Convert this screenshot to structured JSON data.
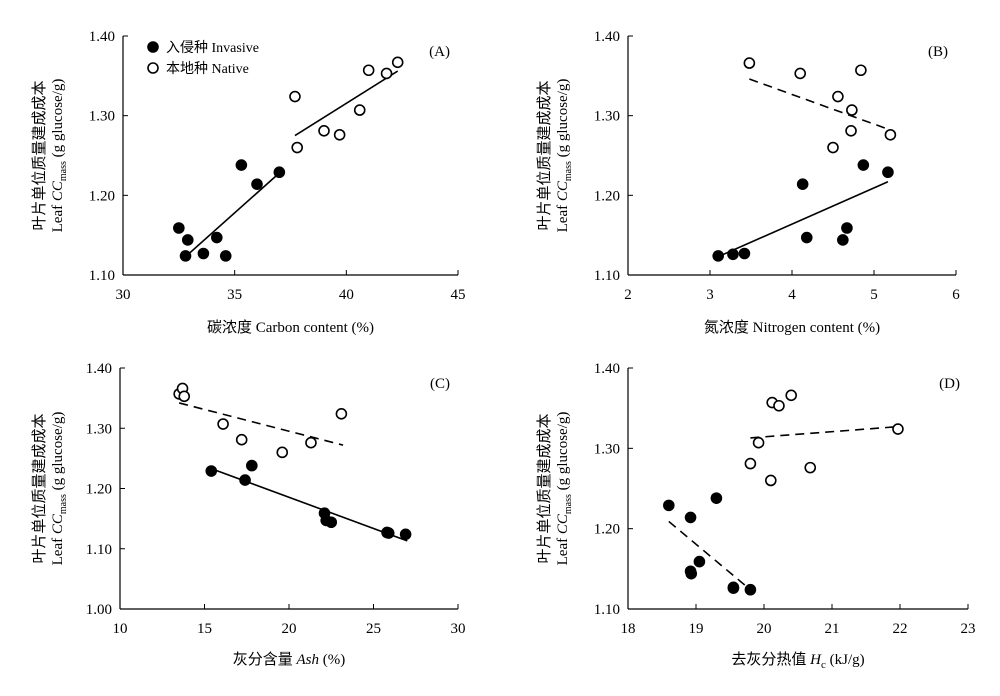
{
  "chart_data": [
    {
      "type": "scatter",
      "panel": "(A)",
      "xlabel_cn": "碳浓度",
      "xlabel_en": "Carbon content (%)",
      "ylabel_cn": "叶片单位质量建成成本",
      "ylabel_en_prefix": "Leaf ",
      "ylabel_italic": "CC",
      "ylabel_sub": "mass",
      "ylabel_en_suffix": " (g glucose/g)",
      "xlim": [
        30,
        45
      ],
      "ylim": [
        1.1,
        1.4
      ],
      "xticks": [
        30,
        35,
        40,
        45
      ],
      "xtick_labels": [
        "30",
        "35",
        "40",
        "45"
      ],
      "yticks": [
        1.1,
        1.2,
        1.3,
        1.4
      ],
      "ytick_labels": [
        "1.10",
        "1.20",
        "1.30",
        "1.40"
      ],
      "legend": {
        "position": "top-left",
        "entries": [
          {
            "series": "invasive",
            "label": "入侵种  Invasive"
          },
          {
            "series": "native",
            "label": "本地种  Native"
          }
        ]
      },
      "series": [
        {
          "key": "invasive",
          "name": "入侵种 Invasive",
          "filled": true,
          "points": [
            [
              32.5,
              1.159
            ],
            [
              32.8,
              1.124
            ],
            [
              32.9,
              1.144
            ],
            [
              33.6,
              1.127
            ],
            [
              34.2,
              1.147
            ],
            [
              34.6,
              1.124
            ],
            [
              35.3,
              1.238
            ],
            [
              36.0,
              1.214
            ],
            [
              37.0,
              1.229
            ]
          ],
          "trend": {
            "style": "solid",
            "x": [
              32.8,
              37.0
            ],
            "y": [
              1.123,
              1.228
            ]
          }
        },
        {
          "key": "native",
          "name": "本地种 Native",
          "filled": false,
          "points": [
            [
              37.7,
              1.324
            ],
            [
              37.8,
              1.26
            ],
            [
              39.0,
              1.281
            ],
            [
              39.7,
              1.276
            ],
            [
              40.6,
              1.307
            ],
            [
              41.0,
              1.357
            ],
            [
              41.8,
              1.353
            ],
            [
              42.3,
              1.367
            ]
          ],
          "trend": {
            "style": "solid",
            "x": [
              37.7,
              42.3
            ],
            "y": [
              1.275,
              1.356
            ]
          }
        }
      ]
    },
    {
      "type": "scatter",
      "panel": "(B)",
      "xlabel_cn": "氮浓度",
      "xlabel_en": "Nitrogen content (%)",
      "ylabel_cn": "叶片单位质量建成成本",
      "ylabel_en_prefix": "Leaf ",
      "ylabel_italic": "CC",
      "ylabel_sub": "mass",
      "ylabel_en_suffix": " (g glucose/g)",
      "xlim": [
        2,
        6
      ],
      "ylim": [
        1.1,
        1.4
      ],
      "xticks": [
        2,
        3,
        4,
        5,
        6
      ],
      "xtick_labels": [
        "2",
        "3",
        "4",
        "5",
        "6"
      ],
      "yticks": [
        1.1,
        1.2,
        1.3,
        1.4
      ],
      "ytick_labels": [
        "1.10",
        "1.20",
        "1.30",
        "1.40"
      ],
      "series": [
        {
          "key": "invasive",
          "filled": true,
          "points": [
            [
              3.1,
              1.124
            ],
            [
              3.28,
              1.126
            ],
            [
              3.42,
              1.127
            ],
            [
              4.13,
              1.214
            ],
            [
              4.18,
              1.147
            ],
            [
              4.62,
              1.144
            ],
            [
              4.67,
              1.159
            ],
            [
              4.87,
              1.238
            ],
            [
              5.17,
              1.229
            ]
          ],
          "trend": {
            "style": "solid",
            "x": [
              3.1,
              5.17
            ],
            "y": [
              1.123,
              1.217
            ]
          }
        },
        {
          "key": "native",
          "filled": false,
          "points": [
            [
              3.48,
              1.366
            ],
            [
              4.1,
              1.353
            ],
            [
              4.5,
              1.26
            ],
            [
              4.56,
              1.324
            ],
            [
              4.72,
              1.281
            ],
            [
              4.73,
              1.307
            ],
            [
              4.84,
              1.357
            ],
            [
              5.2,
              1.276
            ]
          ],
          "trend": {
            "style": "dashed",
            "x": [
              3.48,
              5.2
            ],
            "y": [
              1.346,
              1.282
            ]
          }
        }
      ]
    },
    {
      "type": "scatter",
      "panel": "(C)",
      "xlabel_cn": "灰分含量",
      "xlabel_en_italic": "Ash",
      "xlabel_en": " (%)",
      "ylabel_cn": "叶片单位质量建成成本",
      "ylabel_en_prefix": "Leaf ",
      "ylabel_italic": "CC",
      "ylabel_sub": "mass",
      "ylabel_en_suffix": " (g glucose/g)",
      "xlim": [
        10,
        30
      ],
      "ylim": [
        1.0,
        1.4
      ],
      "xticks": [
        10,
        15,
        20,
        25,
        30
      ],
      "xtick_labels": [
        "10",
        "15",
        "20",
        "25",
        "30"
      ],
      "yticks": [
        1.0,
        1.1,
        1.2,
        1.3,
        1.4
      ],
      "ytick_labels": [
        "1.00",
        "1.10",
        "1.20",
        "1.30",
        "1.40"
      ],
      "series": [
        {
          "key": "invasive",
          "filled": true,
          "points": [
            [
              15.4,
              1.229
            ],
            [
              17.4,
              1.214
            ],
            [
              17.8,
              1.238
            ],
            [
              22.1,
              1.159
            ],
            [
              22.2,
              1.147
            ],
            [
              22.5,
              1.144
            ],
            [
              25.8,
              1.127
            ],
            [
              25.9,
              1.126
            ],
            [
              26.9,
              1.124
            ]
          ],
          "trend": {
            "style": "solid",
            "x": [
              15.4,
              27.0
            ],
            "y": [
              1.233,
              1.113
            ]
          }
        },
        {
          "key": "native",
          "filled": false,
          "points": [
            [
              13.5,
              1.357
            ],
            [
              13.7,
              1.366
            ],
            [
              13.8,
              1.353
            ],
            [
              16.1,
              1.307
            ],
            [
              17.2,
              1.281
            ],
            [
              19.6,
              1.26
            ],
            [
              21.3,
              1.276
            ],
            [
              23.1,
              1.324
            ]
          ],
          "trend": {
            "style": "dashed",
            "x": [
              13.5,
              23.2
            ],
            "y": [
              1.342,
              1.272
            ]
          }
        }
      ]
    },
    {
      "type": "scatter",
      "panel": "(D)",
      "xlabel_cn": "去灰分热值",
      "xlabel_en_italic": "H",
      "xlabel_en_sub": "c",
      "xlabel_en": " (kJ/g)",
      "ylabel_cn": "叶片单位质量建成成本",
      "ylabel_en_prefix": "Leaf ",
      "ylabel_italic": "CC",
      "ylabel_sub": "mass",
      "ylabel_en_suffix": " (g glucose/g)",
      "xlim": [
        18,
        23
      ],
      "ylim": [
        1.1,
        1.4
      ],
      "xticks": [
        18,
        19,
        20,
        21,
        22,
        23
      ],
      "xtick_labels": [
        "18",
        "19",
        "20",
        "21",
        "22",
        "23"
      ],
      "yticks": [
        1.1,
        1.2,
        1.3,
        1.4
      ],
      "ytick_labels": [
        "1.10",
        "1.20",
        "1.30",
        "1.40"
      ],
      "series": [
        {
          "key": "invasive",
          "filled": true,
          "points": [
            [
              18.6,
              1.229
            ],
            [
              18.92,
              1.214
            ],
            [
              18.92,
              1.147
            ],
            [
              18.93,
              1.144
            ],
            [
              19.05,
              1.159
            ],
            [
              19.3,
              1.238
            ],
            [
              19.55,
              1.127
            ],
            [
              19.55,
              1.126
            ],
            [
              19.8,
              1.124
            ]
          ],
          "trend": {
            "style": "dashed",
            "x": [
              18.6,
              19.8
            ],
            "y": [
              1.209,
              1.124
            ]
          }
        },
        {
          "key": "native",
          "filled": false,
          "points": [
            [
              19.8,
              1.281
            ],
            [
              19.92,
              1.307
            ],
            [
              20.1,
              1.26
            ],
            [
              20.12,
              1.357
            ],
            [
              20.22,
              1.353
            ],
            [
              20.4,
              1.366
            ],
            [
              20.68,
              1.276
            ],
            [
              21.97,
              1.324
            ]
          ],
          "trend": {
            "style": "dashed",
            "x": [
              19.8,
              21.97
            ],
            "y": [
              1.313,
              1.327
            ]
          }
        }
      ]
    }
  ]
}
